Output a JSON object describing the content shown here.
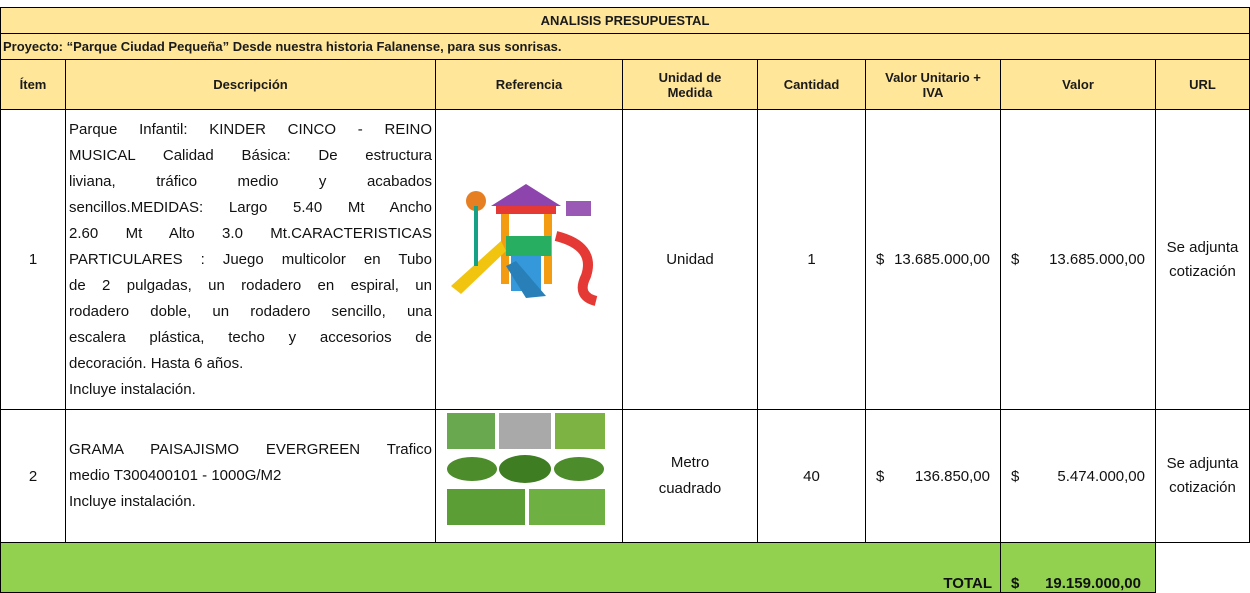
{
  "header": {
    "title": "ANALISIS PRESUPUESTAL",
    "project": "Proyecto: “Parque Ciudad Pequeña” Desde nuestra historia Falanense, para sus sonrisas."
  },
  "table": {
    "columns": [
      "Ítem",
      "Descripción",
      "Referencia",
      "Unidad de Medida",
      "Cantidad",
      "Valor Unitario + IVA",
      "Valor",
      "URL"
    ],
    "rows": [
      {
        "item": 1,
        "description": [
          "Parque Infantil: KINDER CINCO - REINO",
          "MUSICAL Calidad Básica: De estructura",
          "liviana, tráfico medio y acabados",
          "sencillos.MEDIDAS: Largo 5.40 Mt Ancho",
          "2.60 Mt Alto 3.0 Mt.CARACTERISTICAS",
          "PARTICULARES : Juego multicolor en Tubo",
          "de 2 pulgadas, un rodadero en espiral, un",
          "rodadero doble, un rodadero sencillo, una",
          "escalera plástica, techo y accesorios de",
          "decoración. Hasta 6 años."
        ],
        "note": "Incluye instalación.",
        "unit": "Unidad",
        "quantity": 1,
        "unit_value": {
          "symbol": "$",
          "amount": "13.685.000,00"
        },
        "value": {
          "symbol": "$",
          "amount": "13.685.000,00"
        },
        "url": "Se adjunta cotización"
      },
      {
        "item": 2,
        "description": [
          "GRAMA PAISAJISMO EVERGREEN Trafico",
          "medio T300400101 - 1000G/M2"
        ],
        "note": "Incluye instalación.",
        "unit": "Metro cuadrado",
        "quantity": 40,
        "unit_value": {
          "symbol": "$",
          "amount": "136.850,00"
        },
        "value": {
          "symbol": "$",
          "amount": "5.474.000,00"
        },
        "url": "Se adjunta cotización"
      }
    ],
    "total": {
      "label": "TOTAL",
      "symbol": "$",
      "amount": "19.159.000,00"
    }
  }
}
